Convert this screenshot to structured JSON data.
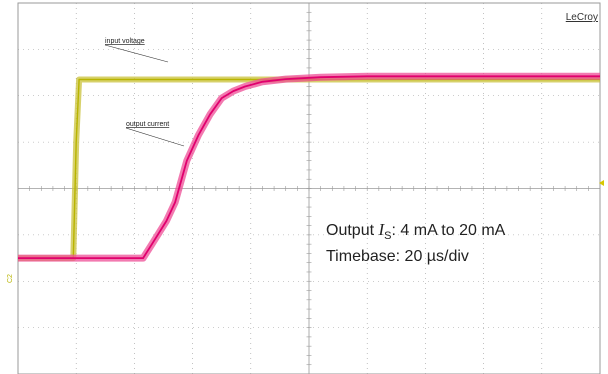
{
  "brand": "LeCroy",
  "channel_marker": "C2",
  "annotations": {
    "output_prefix": "Output ",
    "symbol_main": "I",
    "symbol_sub": "S",
    "range_text": ": 4 mA to 20 mA",
    "timebase": "Timebase: 20 µs/div"
  },
  "colors": {
    "input_trace": "#b8b400",
    "input_band": "#c9c23a",
    "output_trace": "#e0006e",
    "output_band": "#ee4d95",
    "grid": "#9a9a9a",
    "trigger_marker": "#d8c800"
  },
  "chart_data": {
    "type": "line",
    "divisions": {
      "x": 10,
      "y": 8
    },
    "x_scale": "20 µs/div",
    "grid": true,
    "series": [
      {
        "name": "input voltage",
        "x_div": [
          0,
          0.95,
          1.0,
          1.05,
          10
        ],
        "y_div": [
          -1.5,
          -1.5,
          1.0,
          2.35,
          2.35
        ]
      },
      {
        "name": "output current",
        "x_div": [
          0,
          2.15,
          2.3,
          2.55,
          2.7,
          2.9,
          3.1,
          3.3,
          3.5,
          3.7,
          3.9,
          4.2,
          4.6,
          5.2,
          6.0,
          10
        ],
        "y_div": [
          -1.5,
          -1.5,
          -1.2,
          -0.7,
          -0.3,
          0.6,
          1.15,
          1.6,
          1.95,
          2.1,
          2.2,
          2.3,
          2.36,
          2.4,
          2.42,
          2.42
        ]
      }
    ]
  }
}
